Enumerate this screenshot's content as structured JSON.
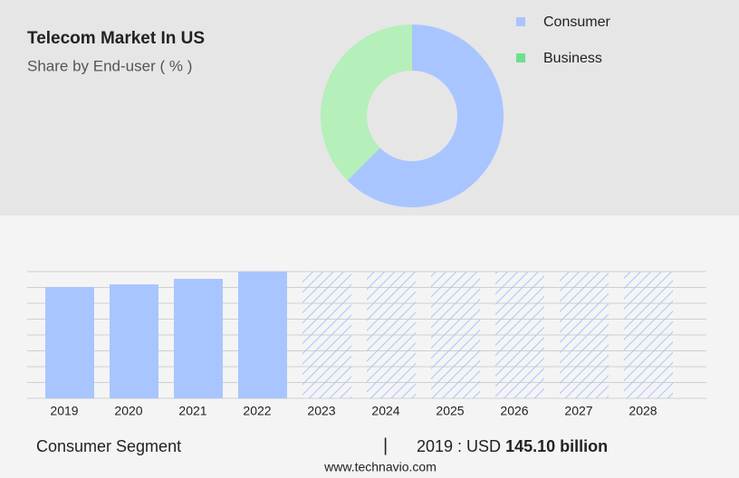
{
  "header": {
    "title": "Telecom Market In US",
    "subtitle": "Share by End-user ( % )"
  },
  "chart_data": [
    {
      "type": "pie",
      "donut": true,
      "categories": [
        "Consumer",
        "Business"
      ],
      "values": [
        62.5,
        37.5
      ],
      "colors": [
        "#a9c5ff",
        "#b5efb9"
      ],
      "legend_colors": [
        "#a9c5ff",
        "#6ee08a"
      ],
      "legend": "top-right"
    },
    {
      "type": "bar",
      "categories": [
        "2019",
        "2020",
        "2021",
        "2022",
        "2023",
        "2024",
        "2025",
        "2026",
        "2027",
        "2028"
      ],
      "values": [
        145.1,
        148.6,
        155.7,
        165.2,
        null,
        null,
        null,
        null,
        null,
        null
      ],
      "color": "#a9c5ff",
      "ylim": [
        0,
        165.2
      ],
      "grid": true
    }
  ],
  "footer": {
    "segment": "Consumer Segment",
    "separator": "|",
    "year_label": "2019 : USD",
    "value": "145.10 billion"
  },
  "source": "www.technavio.com"
}
